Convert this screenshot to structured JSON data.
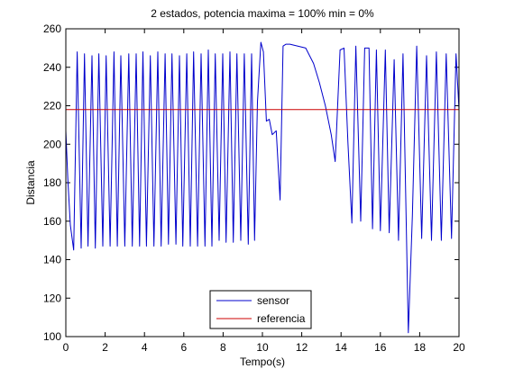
{
  "chart_data": {
    "type": "line",
    "title": "2 estados, potencia maxima = 100%  min = 0%",
    "xlabel": "Tempo(s)",
    "ylabel": "Distancia",
    "xlim": [
      0,
      20
    ],
    "ylim": [
      100,
      260
    ],
    "xticks": [
      0,
      2,
      4,
      6,
      8,
      10,
      12,
      14,
      16,
      18,
      20
    ],
    "yticks": [
      100,
      120,
      140,
      160,
      180,
      200,
      220,
      240,
      260
    ],
    "grid": false,
    "legend_position": "bottom-center",
    "series": [
      {
        "name": "sensor",
        "color": "#0000cc",
        "x": [
          0.0,
          0.1,
          0.23,
          0.4,
          0.58,
          0.78,
          0.95,
          1.13,
          1.33,
          1.5,
          1.68,
          1.88,
          2.05,
          2.25,
          2.45,
          2.62,
          2.8,
          3.0,
          3.2,
          3.38,
          3.58,
          3.75,
          3.92,
          4.1,
          4.3,
          4.48,
          4.68,
          4.85,
          5.05,
          5.22,
          5.4,
          5.6,
          5.78,
          5.95,
          6.15,
          6.33,
          6.5,
          6.7,
          6.88,
          7.08,
          7.25,
          7.43,
          7.6,
          7.8,
          7.98,
          8.15,
          8.35,
          8.52,
          8.7,
          8.9,
          9.08,
          9.28,
          9.45,
          9.6,
          9.75,
          9.92,
          10.05,
          10.2,
          10.35,
          10.5,
          10.7,
          10.9,
          11.05,
          11.2,
          11.4,
          12.2,
          12.6,
          12.9,
          13.2,
          13.5,
          13.7,
          13.95,
          14.15,
          14.35,
          14.55,
          14.75,
          15.0,
          15.2,
          15.42,
          15.6,
          15.8,
          16.0,
          16.25,
          16.45,
          16.7,
          16.92,
          17.15,
          17.42,
          17.63,
          17.85,
          18.1,
          18.35,
          18.6,
          18.85,
          19.1,
          19.35,
          19.62,
          19.85,
          20.0
        ],
        "y": [
          207,
          182,
          158,
          145,
          248,
          146,
          247,
          147,
          246,
          146,
          247,
          147,
          246,
          147,
          248,
          147,
          246,
          147,
          247,
          147,
          247,
          147,
          248,
          147,
          246,
          147,
          248,
          147,
          247,
          148,
          247,
          148,
          246,
          147,
          247,
          147,
          248,
          147,
          247,
          147,
          249,
          147,
          247,
          150,
          247,
          149,
          248,
          149,
          247,
          150,
          247,
          148,
          247,
          150,
          222,
          253,
          248,
          212,
          213,
          205,
          207,
          171,
          251,
          252,
          252,
          250,
          242,
          232,
          220,
          205,
          191,
          249,
          250,
          201,
          159,
          251,
          160,
          250,
          250,
          156,
          249,
          155,
          249,
          154,
          244,
          150,
          247,
          102,
          163,
          251,
          151,
          246,
          150,
          248,
          150,
          247,
          151,
          247,
          218
        ]
      },
      {
        "name": "referencia",
        "color": "#cc0000",
        "x": [
          0,
          20
        ],
        "y": [
          218,
          218
        ]
      }
    ]
  }
}
